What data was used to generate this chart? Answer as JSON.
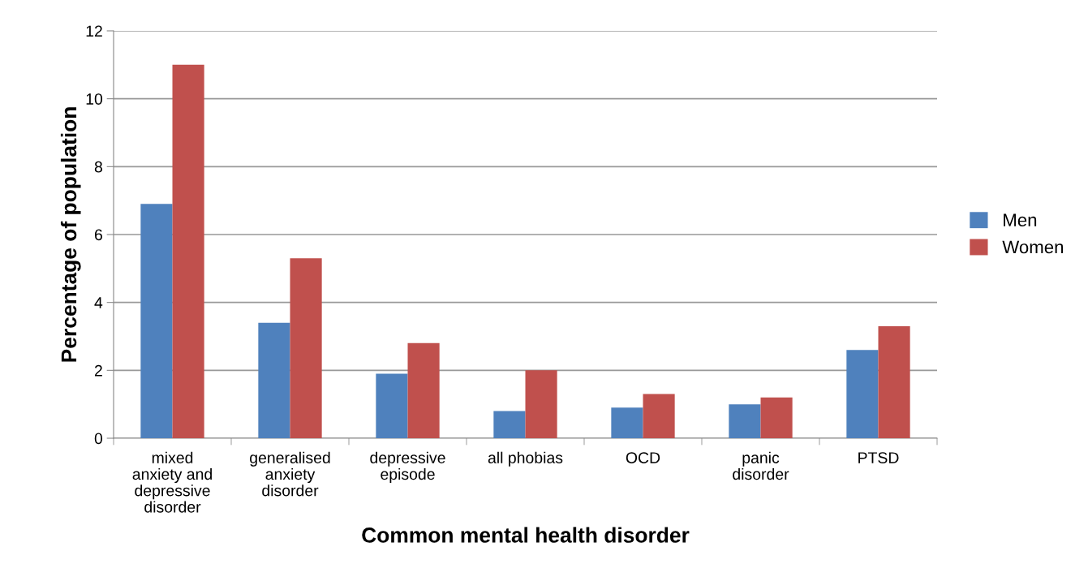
{
  "chart_data": {
    "type": "bar",
    "xlabel": "Common mental health disorder",
    "ylabel": "Percentage of population",
    "categories": [
      "mixed anxiety and depressive disorder",
      "generalised anxiety disorder",
      "depressive episode",
      "all phobias",
      "OCD",
      "panic disorder",
      "PTSD"
    ],
    "series": [
      {
        "name": "Men",
        "color": "#4f81bd",
        "values": [
          6.9,
          3.4,
          1.9,
          0.8,
          0.9,
          1.0,
          2.6
        ]
      },
      {
        "name": "Women",
        "color": "#c0504d",
        "values": [
          11.0,
          5.3,
          2.8,
          2.0,
          1.3,
          1.2,
          3.3
        ]
      }
    ],
    "ylim": [
      0,
      12
    ],
    "yticks": [
      0,
      2,
      4,
      6,
      8,
      10,
      12
    ],
    "grid": "y",
    "legend": "right"
  }
}
